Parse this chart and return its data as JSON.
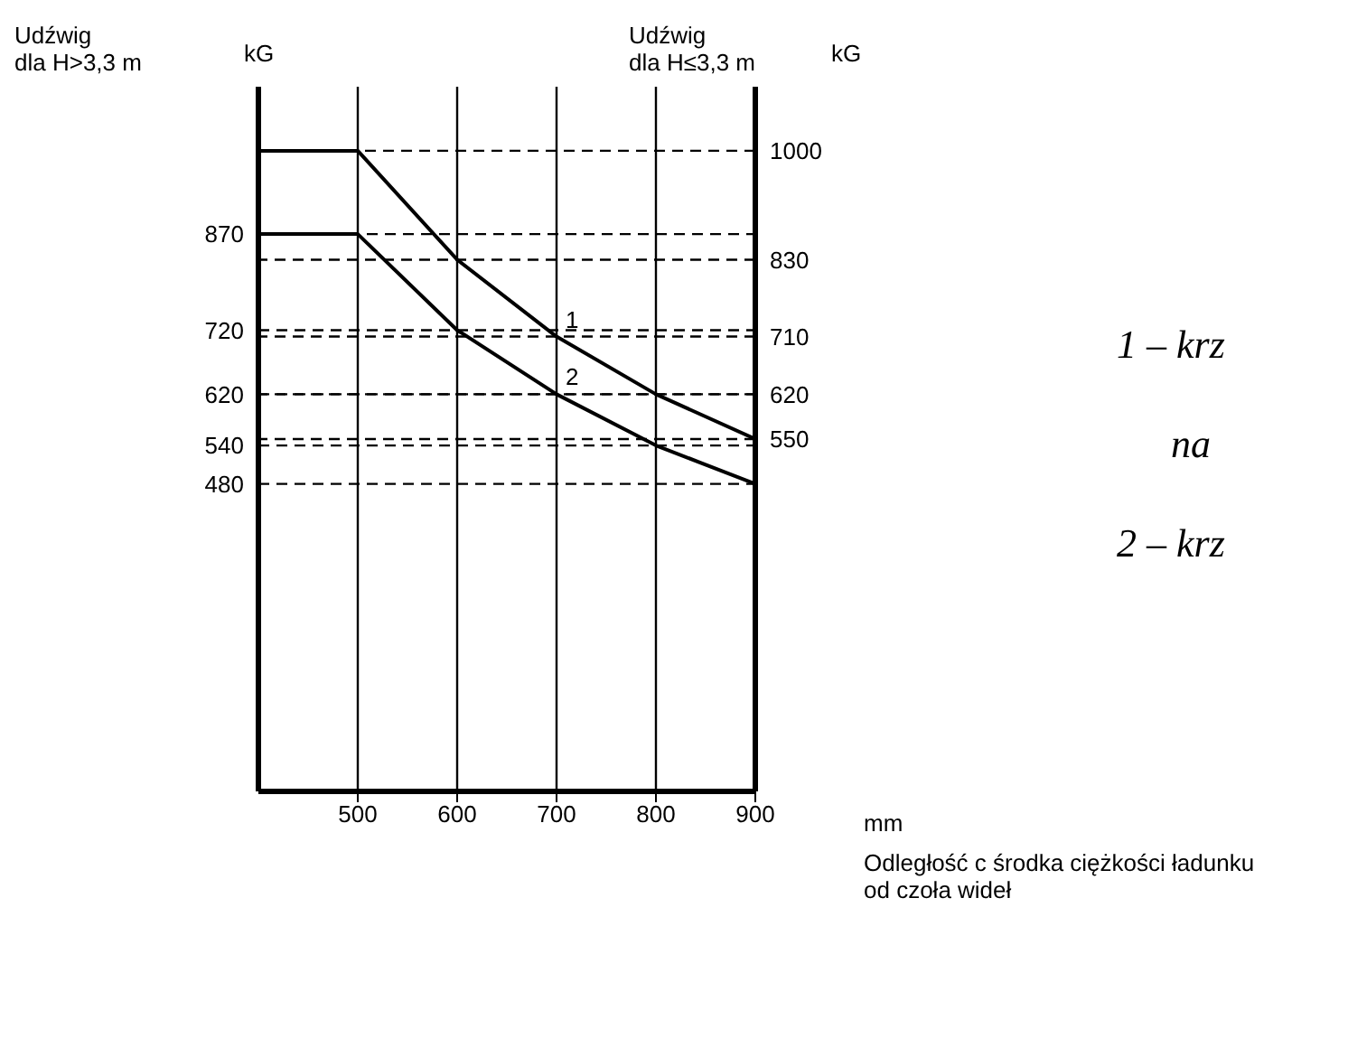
{
  "chart_data": {
    "type": "line",
    "ylabel": "Udźwig dla H>3,3 m",
    "y2label": "Udźwig dla H≤3,3 m",
    "x": [
      400,
      500,
      600,
      700,
      800,
      900
    ],
    "series": [
      {
        "name": "1",
        "color": "#000000",
        "values": [
          1000,
          1000,
          830,
          710,
          620,
          550
        ]
      },
      {
        "name": "2",
        "color": "#000000",
        "values": [
          870,
          870,
          720,
          620,
          540,
          480
        ]
      }
    ],
    "xlim": [
      400,
      900
    ],
    "xticks": [
      500,
      600,
      700,
      800,
      900
    ],
    "ylim": [
      0,
      1100
    ],
    "yticks": [
      480,
      540,
      620,
      720,
      870
    ],
    "y2lim": [
      0,
      1100
    ],
    "y2ticks": [
      550,
      620,
      710,
      830,
      1000
    ],
    "annotations": [
      "kG",
      "kG",
      "mm",
      "Odległość c środka ciężkości ładunku od czoła wideł",
      "1 – krz",
      "na",
      "2 – krz"
    ],
    "marker": "none",
    "line_style": "solid",
    "grid": true
  }
}
